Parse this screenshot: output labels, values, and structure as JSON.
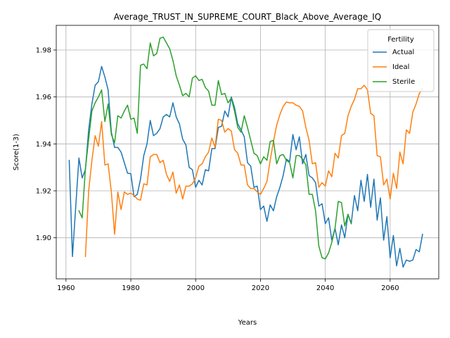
{
  "chart_data": {
    "type": "line",
    "title": "Average_TRUST_IN_SUPREME_COURT_Black_Above_Average_IQ",
    "xlabel": "Years",
    "ylabel": "Score(1-3)",
    "xlim": [
      1957,
      2075
    ],
    "ylim": [
      1.8825,
      1.9905
    ],
    "xticks": [
      1960,
      1980,
      2000,
      2020,
      2040,
      2060
    ],
    "yticks": [
      1.9,
      1.92,
      1.94,
      1.96,
      1.98
    ],
    "grid": true,
    "legend": {
      "title": "Fertility",
      "placement": "upper right"
    },
    "series": [
      {
        "name": "Actual",
        "color": "#1f77b4",
        "x": [
          1961,
          1962,
          1963,
          1964,
          1965,
          1966,
          1967,
          1968,
          1969,
          1970,
          1971,
          1972,
          1973,
          1974,
          1975,
          1976,
          1977,
          1978,
          1979,
          1980,
          1981,
          1982,
          1983,
          1984,
          1985,
          1986,
          1987,
          1988,
          1989,
          1990,
          1991,
          1992,
          1993,
          1994,
          1995,
          1996,
          1997,
          1998,
          1999,
          2000,
          2001,
          2002,
          2003,
          2004,
          2005,
          2006,
          2007,
          2008,
          2009,
          2010,
          2011,
          2012,
          2013,
          2014,
          2015,
          2016,
          2017,
          2018,
          2019,
          2020,
          2021,
          2022,
          2023,
          2024,
          2025,
          2026,
          2027,
          2028,
          2029,
          2030,
          2031,
          2032,
          2033,
          2034,
          2035,
          2036,
          2037,
          2038,
          2039,
          2040,
          2041,
          2042,
          2043,
          2044,
          2045,
          2046,
          2047,
          2048,
          2049,
          2050,
          2051,
          2052,
          2053,
          2054,
          2055,
          2056,
          2057,
          2058,
          2059,
          2060,
          2061,
          2062,
          2063,
          2064,
          2065,
          2066,
          2067,
          2068,
          2069,
          2070
        ],
        "values": [
          1.933,
          1.892,
          1.913,
          1.934,
          1.9255,
          1.929,
          1.946,
          1.957,
          1.965,
          1.9665,
          1.973,
          1.9685,
          1.963,
          1.945,
          1.9385,
          1.9385,
          1.9365,
          1.932,
          1.9275,
          1.9273,
          1.9175,
          1.9185,
          1.925,
          1.935,
          1.94,
          1.95,
          1.9435,
          1.9445,
          1.9465,
          1.9515,
          1.9525,
          1.9515,
          1.9575,
          1.9515,
          1.9485,
          1.942,
          1.9395,
          1.93,
          1.929,
          1.9215,
          1.9245,
          1.9225,
          1.929,
          1.9285,
          1.938,
          1.938,
          1.947,
          1.9475,
          1.954,
          1.9515,
          1.96,
          1.9555,
          1.9485,
          1.946,
          1.943,
          1.932,
          1.9305,
          1.9215,
          1.922,
          1.912,
          1.9135,
          1.907,
          1.914,
          1.9115,
          1.9175,
          1.9215,
          1.9265,
          1.9335,
          1.9325,
          1.944,
          1.9375,
          1.943,
          1.9315,
          1.9355,
          1.9265,
          1.9255,
          1.9235,
          1.9135,
          1.9145,
          1.906,
          1.9085,
          1.899,
          1.904,
          1.897,
          1.9055,
          1.9,
          1.91,
          1.906,
          1.918,
          1.9115,
          1.9245,
          1.9155,
          1.927,
          1.913,
          1.925,
          1.9075,
          1.917,
          1.899,
          1.909,
          1.8915,
          1.901,
          1.888,
          1.8955,
          1.8875,
          1.8905,
          1.89,
          1.8905,
          1.895,
          1.894,
          1.9015
        ]
      },
      {
        "name": "Ideal",
        "color": "#ff7f0e",
        "x": [
          1966,
          1967,
          1968,
          1969,
          1970,
          1971,
          1972,
          1973,
          1974,
          1975,
          1976,
          1977,
          1978,
          1979,
          1980,
          1981,
          1982,
          1983,
          1984,
          1985,
          1986,
          1987,
          1988,
          1989,
          1990,
          1991,
          1992,
          1993,
          1994,
          1995,
          1996,
          1997,
          1998,
          1999,
          2000,
          2001,
          2002,
          2003,
          2004,
          2005,
          2006,
          2007,
          2008,
          2009,
          2010,
          2011,
          2012,
          2013,
          2014,
          2015,
          2016,
          2017,
          2018,
          2019,
          2020,
          2021,
          2022,
          2023,
          2024,
          2025,
          2026,
          2027,
          2028,
          2029,
          2030,
          2031,
          2032,
          2033,
          2034,
          2035,
          2036,
          2037,
          2038,
          2039,
          2040,
          2041,
          2042,
          2043,
          2044,
          2045,
          2046,
          2047,
          2048,
          2049,
          2050,
          2051,
          2052,
          2053,
          2054,
          2055,
          2056,
          2057,
          2058,
          2059,
          2060,
          2061,
          2062,
          2063,
          2064,
          2065,
          2066,
          2067,
          2068,
          2069,
          2070
        ],
        "values": [
          1.892,
          1.92,
          1.933,
          1.9435,
          1.939,
          1.9495,
          1.931,
          1.9315,
          1.9195,
          1.9015,
          1.9195,
          1.912,
          1.9195,
          1.9185,
          1.919,
          1.918,
          1.9165,
          1.916,
          1.923,
          1.9225,
          1.9345,
          1.9355,
          1.9355,
          1.932,
          1.933,
          1.927,
          1.924,
          1.928,
          1.919,
          1.9225,
          1.9165,
          1.922,
          1.922,
          1.923,
          1.9255,
          1.9305,
          1.9315,
          1.9345,
          1.9365,
          1.9425,
          1.9385,
          1.9505,
          1.95,
          1.945,
          1.9465,
          1.9455,
          1.9375,
          1.936,
          1.931,
          1.931,
          1.9225,
          1.921,
          1.921,
          1.9195,
          1.9185,
          1.921,
          1.924,
          1.933,
          1.941,
          1.948,
          1.9525,
          1.956,
          1.9578,
          1.9575,
          1.9575,
          1.9565,
          1.956,
          1.954,
          1.947,
          1.9415,
          1.9315,
          1.932,
          1.9215,
          1.9235,
          1.922,
          1.9285,
          1.926,
          1.936,
          1.934,
          1.9435,
          1.9445,
          1.952,
          1.956,
          1.959,
          1.9635,
          1.9635,
          1.965,
          1.963,
          1.953,
          1.952,
          1.935,
          1.9345,
          1.9225,
          1.925,
          1.9165,
          1.9275,
          1.921,
          1.9365,
          1.9315,
          1.946,
          1.9445,
          1.9535,
          1.957,
          1.9615,
          1.9635
        ]
      },
      {
        "name": "Sterile",
        "color": "#2ca02c",
        "x": [
          1964,
          1965,
          1966,
          1967,
          1968,
          1969,
          1970,
          1971,
          1972,
          1973,
          1974,
          1975,
          1976,
          1977,
          1978,
          1979,
          1980,
          1981,
          1982,
          1983,
          1984,
          1985,
          1986,
          1987,
          1988,
          1989,
          1990,
          1991,
          1992,
          1993,
          1994,
          1995,
          1996,
          1997,
          1998,
          1999,
          2000,
          2001,
          2002,
          2003,
          2004,
          2005,
          2006,
          2007,
          2008,
          2009,
          2010,
          2011,
          2012,
          2013,
          2014,
          2015,
          2016,
          2017,
          2018,
          2019,
          2020,
          2021,
          2022,
          2023,
          2024,
          2025,
          2026,
          2027,
          2028,
          2029,
          2030,
          2031,
          2032,
          2033,
          2034,
          2035,
          2036,
          2037,
          2038,
          2039,
          2040,
          2041,
          2042,
          2043,
          2044,
          2045,
          2046,
          2047,
          2048
        ],
        "values": [
          1.9115,
          1.9085,
          1.9295,
          1.942,
          1.954,
          1.9575,
          1.96,
          1.963,
          1.9495,
          1.957,
          1.944,
          1.9405,
          1.952,
          1.951,
          1.954,
          1.9565,
          1.9505,
          1.951,
          1.9445,
          1.9735,
          1.974,
          1.972,
          1.983,
          1.9775,
          1.9785,
          1.985,
          1.9855,
          1.983,
          1.9805,
          1.9755,
          1.969,
          1.965,
          1.9605,
          1.9615,
          1.96,
          1.968,
          1.969,
          1.967,
          1.9675,
          1.964,
          1.9625,
          1.9565,
          1.9565,
          1.967,
          1.961,
          1.9615,
          1.9575,
          1.9595,
          1.954,
          1.947,
          1.945,
          1.952,
          1.947,
          1.9415,
          1.936,
          1.935,
          1.9315,
          1.9345,
          1.933,
          1.941,
          1.9415,
          1.9315,
          1.935,
          1.9355,
          1.933,
          1.932,
          1.9255,
          1.935,
          1.935,
          1.9335,
          1.931,
          1.9185,
          1.9185,
          1.9115,
          1.8965,
          1.8915,
          1.891,
          1.8935,
          1.898,
          1.904,
          1.9155,
          1.915,
          1.905,
          1.91,
          1.906
        ]
      }
    ]
  }
}
